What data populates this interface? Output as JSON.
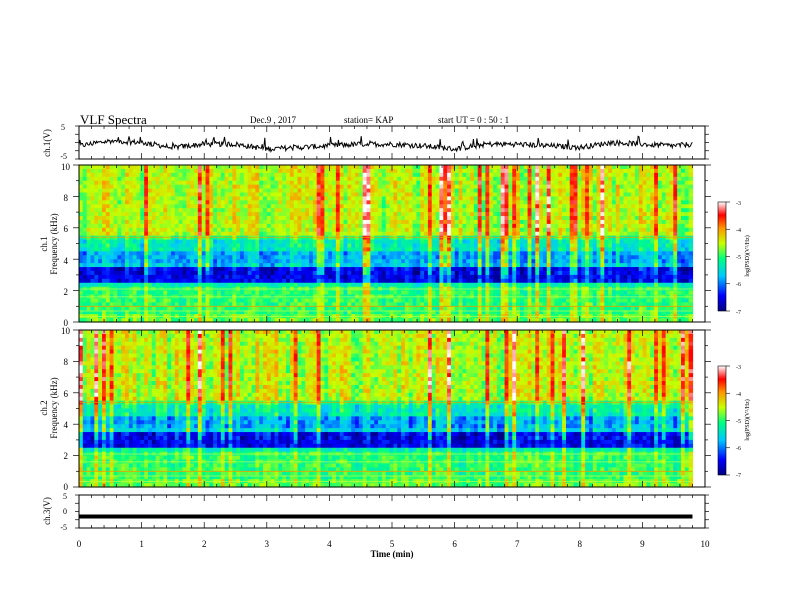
{
  "header": {
    "title": "VLF Spectra",
    "date": "Dec.9  , 2017",
    "station": "station= KAP",
    "start": "start  UT =   0 : 50 : 1"
  },
  "chart_data": [
    {
      "type": "line",
      "ylabel": "ch.1(V)",
      "xlim": [
        0,
        10
      ],
      "ylim": [
        -5,
        5
      ],
      "yticks": [
        "5",
        "-5"
      ],
      "description": "noisy waveform fluctuating around about -1 V with amplitude about 2 V",
      "x": [
        0,
        0.5,
        1,
        1.5,
        2,
        2.5,
        3,
        3.5,
        4,
        4.5,
        5,
        5.5,
        6,
        6.5,
        7,
        7.5,
        8,
        8.5,
        9,
        9.5,
        9.8
      ],
      "y": [
        -1,
        0.5,
        0,
        -1.5,
        -0.5,
        -0.5,
        -2,
        -1.5,
        -1,
        -0.5,
        -0.5,
        -1,
        -2,
        -0.5,
        -0.5,
        -1,
        -1.5,
        0,
        -0.5,
        -1,
        -0.5
      ]
    },
    {
      "type": "heatmap",
      "ylabel": "ch.1\nFrequency (kHz)",
      "xlim": [
        0,
        10
      ],
      "ylim": [
        0,
        10
      ],
      "yticks": [
        "0",
        "2",
        "4",
        "6",
        "8",
        "10"
      ],
      "colorbar": {
        "label": "log(PSD)(V²/Hz)",
        "range": [
          -7,
          -3
        ],
        "ticks": [
          "-3",
          "-4",
          "-5",
          "-6",
          "-7"
        ]
      },
      "data_extent_x": [
        0,
        9.8
      ]
    },
    {
      "type": "heatmap",
      "ylabel": "ch.2\nFrequency (kHz)",
      "xlim": [
        0,
        10
      ],
      "ylim": [
        0,
        10
      ],
      "yticks": [
        "0",
        "2",
        "4",
        "6",
        "8",
        "10"
      ],
      "colorbar": {
        "label": "log(PSD)(V²/Hz)",
        "range": [
          -7,
          -3
        ],
        "ticks": [
          "-3",
          "-4",
          "-5",
          "-6",
          "-7"
        ]
      },
      "data_extent_x": [
        0,
        9.8
      ]
    },
    {
      "type": "line",
      "ylabel": "ch.3(V)",
      "xlim": [
        0,
        10
      ],
      "ylim": [
        -5,
        5
      ],
      "yticks": [
        "5",
        "0",
        "-5"
      ],
      "x": [
        0,
        9.8
      ],
      "y": [
        -1.5,
        -1.5
      ]
    }
  ],
  "xaxis": {
    "label": "Time  (min)",
    "ticks": [
      "0",
      "1",
      "2",
      "3",
      "4",
      "5",
      "6",
      "7",
      "8",
      "9",
      "10"
    ]
  }
}
